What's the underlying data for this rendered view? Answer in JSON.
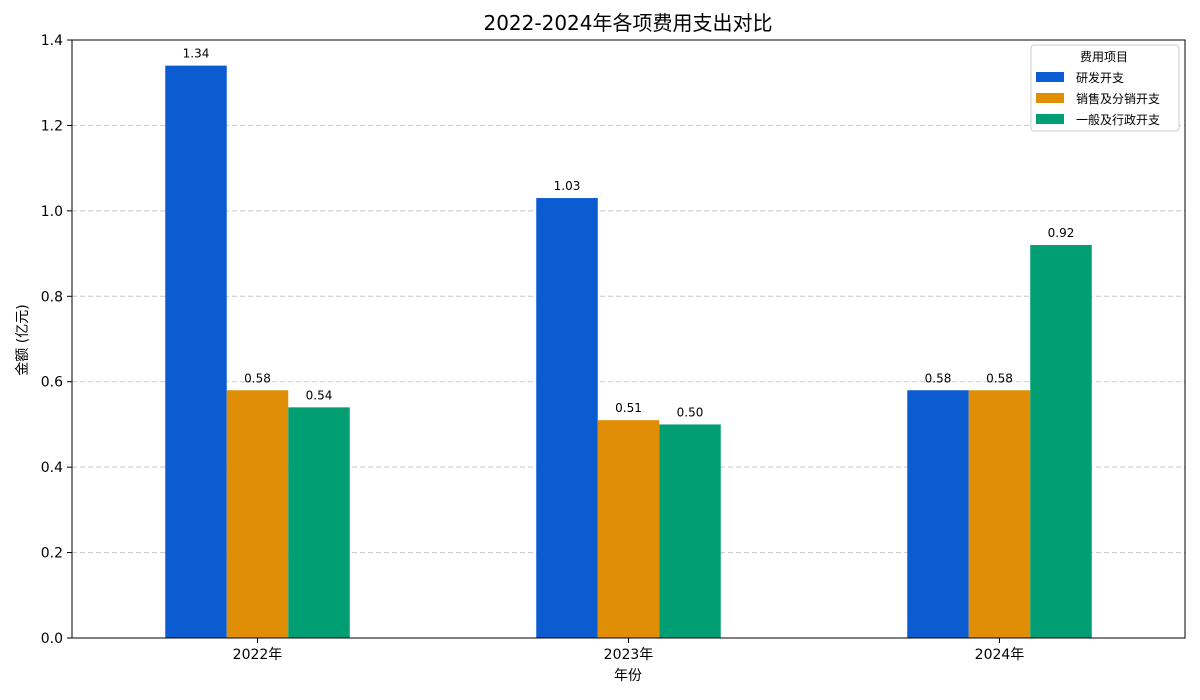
{
  "chart_data": {
    "type": "bar",
    "title": "2022-2024年各项费用支出对比",
    "xlabel": "年份",
    "ylabel": "金额 (亿元)",
    "categories": [
      "2022年",
      "2023年",
      "2024年"
    ],
    "ylim": [
      0,
      1.4
    ],
    "yticks": [
      "0.0",
      "0.2",
      "0.4",
      "0.6",
      "0.8",
      "1.0",
      "1.2",
      "1.4"
    ],
    "grid": true,
    "legend_title": "费用项目",
    "legend_position": "top-right",
    "series": [
      {
        "name": "研发开支",
        "color": "#0b5bd1",
        "values": [
          1.34,
          1.03,
          0.58
        ],
        "labels": [
          "1.34",
          "1.03",
          "0.58"
        ]
      },
      {
        "name": "销售及分销开支",
        "color": "#df8e05",
        "values": [
          0.58,
          0.51,
          0.58
        ],
        "labels": [
          "0.58",
          "0.51",
          "0.58"
        ]
      },
      {
        "name": "一般及行政开支",
        "color": "#029e73",
        "values": [
          0.54,
          0.5,
          0.92
        ],
        "labels": [
          "0.54",
          "0.50",
          "0.92"
        ]
      }
    ]
  }
}
